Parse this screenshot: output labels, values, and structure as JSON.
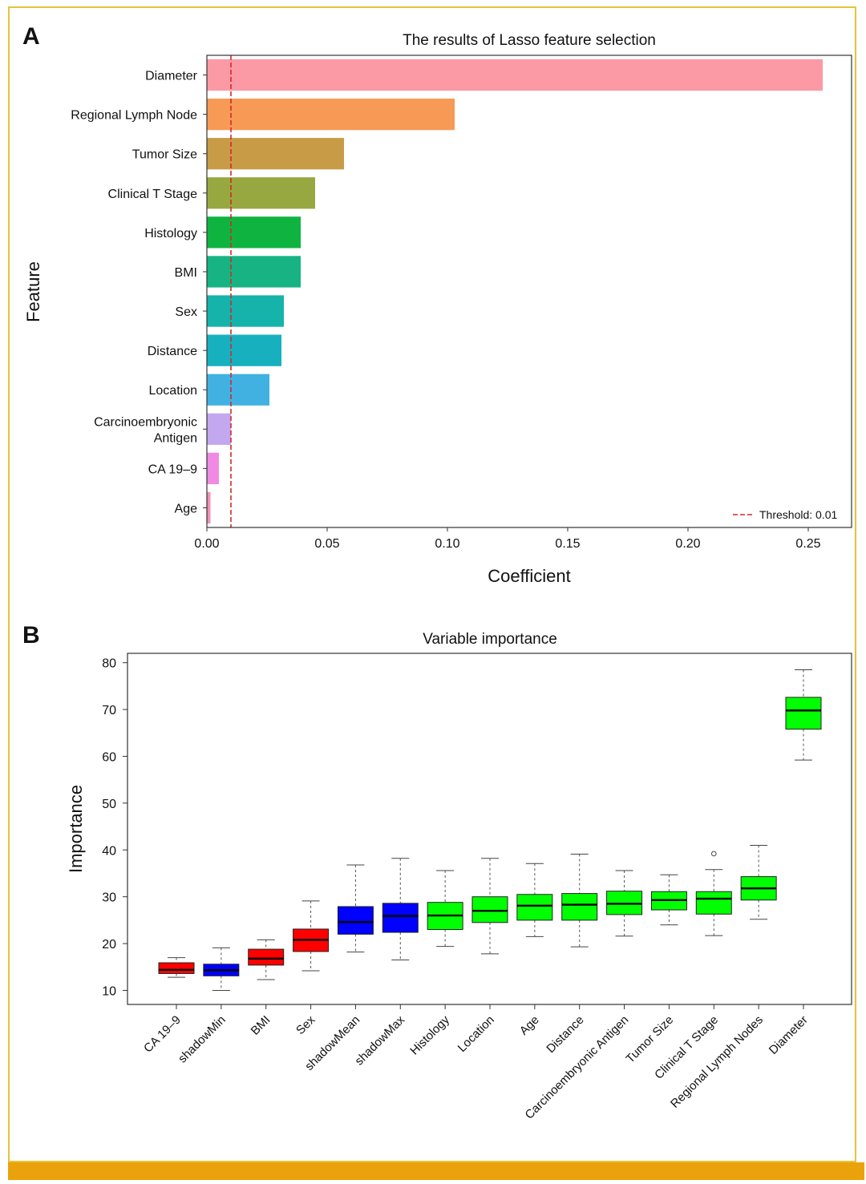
{
  "chart_data": [
    {
      "type": "bar",
      "orientation": "horizontal",
      "panel_label": "A",
      "title": "The results of Lasso feature selection",
      "xlabel": "Coefficient",
      "ylabel": "Feature",
      "xlim": [
        0,
        0.268
      ],
      "xticks": [
        "0.00",
        "0.05",
        "0.10",
        "0.15",
        "0.20",
        "0.25"
      ],
      "xtick_values": [
        0,
        0.05,
        0.1,
        0.15,
        0.2,
        0.25
      ],
      "categories": [
        "Diameter",
        "Regional Lymph Node",
        "Tumor Size",
        "Clinical T Stage",
        "Histology",
        "BMI",
        "Sex",
        "Distance",
        "Location",
        "Carcinoembryonic Antigen",
        "CA 19–9",
        "Age"
      ],
      "category_lines": [
        [
          "Diameter"
        ],
        [
          "Regional Lymph Node"
        ],
        [
          "Tumor Size"
        ],
        [
          "Clinical T Stage"
        ],
        [
          "Histology"
        ],
        [
          "BMI"
        ],
        [
          "Sex"
        ],
        [
          "Distance"
        ],
        [
          "Location"
        ],
        [
          "Carcinoembryonic",
          "Antigen"
        ],
        [
          "CA 19–9"
        ],
        [
          "Age"
        ]
      ],
      "values": [
        0.256,
        0.103,
        0.057,
        0.045,
        0.039,
        0.039,
        0.032,
        0.031,
        0.026,
        0.01,
        0.005,
        0.0015
      ],
      "colors": [
        "#fb9aa5",
        "#f79a56",
        "#c89b46",
        "#98a840",
        "#0fb440",
        "#17b383",
        "#15b3aa",
        "#17b0bf",
        "#41b1e2",
        "#c3a7ef",
        "#f08ae3",
        "#f28fb4"
      ],
      "threshold": {
        "value": 0.01,
        "label": "Threshold: 0.01",
        "color": "#d62728"
      },
      "legend_position": "bottom-right",
      "grid": false
    },
    {
      "type": "boxplot",
      "panel_label": "B",
      "title": "Variable importance",
      "ylabel": "Importance",
      "xlabel": "",
      "ylim": [
        7,
        82
      ],
      "yticks": [
        10,
        20,
        30,
        40,
        50,
        60,
        70,
        80
      ],
      "grid": false,
      "boxes": [
        {
          "label": "CA 19–9",
          "color": "#ff0000",
          "min": 12.8,
          "q1": 13.6,
          "median": 14.4,
          "q3": 15.9,
          "max": 17.0,
          "outliers": []
        },
        {
          "label": "shadowMin",
          "color": "#0000ff",
          "min": 10.0,
          "q1": 13.1,
          "median": 14.3,
          "q3": 15.6,
          "max": 19.1,
          "outliers": []
        },
        {
          "label": "BMI",
          "color": "#ff0000",
          "min": 12.3,
          "q1": 15.4,
          "median": 16.8,
          "q3": 18.8,
          "max": 20.8,
          "outliers": []
        },
        {
          "label": "Sex",
          "color": "#ff0000",
          "min": 14.2,
          "q1": 18.3,
          "median": 20.8,
          "q3": 23.1,
          "max": 29.1,
          "outliers": []
        },
        {
          "label": "shadowMean",
          "color": "#0000ff",
          "min": 18.2,
          "q1": 22.0,
          "median": 24.6,
          "q3": 27.9,
          "max": 36.8,
          "outliers": []
        },
        {
          "label": "shadowMax",
          "color": "#0000ff",
          "min": 16.5,
          "q1": 22.4,
          "median": 25.9,
          "q3": 28.6,
          "max": 38.2,
          "outliers": []
        },
        {
          "label": "Histology",
          "color": "#00ff00",
          "min": 19.4,
          "q1": 23.0,
          "median": 26.0,
          "q3": 28.8,
          "max": 35.6,
          "outliers": []
        },
        {
          "label": "Location",
          "color": "#00ff00",
          "min": 17.8,
          "q1": 24.5,
          "median": 27.0,
          "q3": 30.0,
          "max": 38.2,
          "outliers": []
        },
        {
          "label": "Age",
          "color": "#00ff00",
          "min": 21.5,
          "q1": 25.0,
          "median": 28.1,
          "q3": 30.5,
          "max": 37.1,
          "outliers": []
        },
        {
          "label": "Distance",
          "color": "#00ff00",
          "min": 19.3,
          "q1": 25.0,
          "median": 28.3,
          "q3": 30.7,
          "max": 39.1,
          "outliers": []
        },
        {
          "label": "Carcinoembryonic Antigen",
          "color": "#00ff00",
          "min": 21.6,
          "q1": 26.2,
          "median": 28.5,
          "q3": 31.2,
          "max": 35.6,
          "outliers": []
        },
        {
          "label": "Tumor Size",
          "color": "#00ff00",
          "min": 24.0,
          "q1": 27.2,
          "median": 29.3,
          "q3": 31.1,
          "max": 34.7,
          "outliers": []
        },
        {
          "label": "Clinical T Stage",
          "color": "#00ff00",
          "min": 21.7,
          "q1": 26.3,
          "median": 29.6,
          "q3": 31.1,
          "max": 35.8,
          "outliers": [
            39.2
          ]
        },
        {
          "label": "Regional Lymph Nodes",
          "color": "#00ff00",
          "min": 25.2,
          "q1": 29.3,
          "median": 31.8,
          "q3": 34.3,
          "max": 41.0,
          "outliers": []
        },
        {
          "label": "Diameter",
          "color": "#00ff00",
          "min": 59.2,
          "q1": 65.8,
          "median": 69.8,
          "q3": 72.6,
          "max": 78.5,
          "outliers": []
        }
      ]
    }
  ]
}
